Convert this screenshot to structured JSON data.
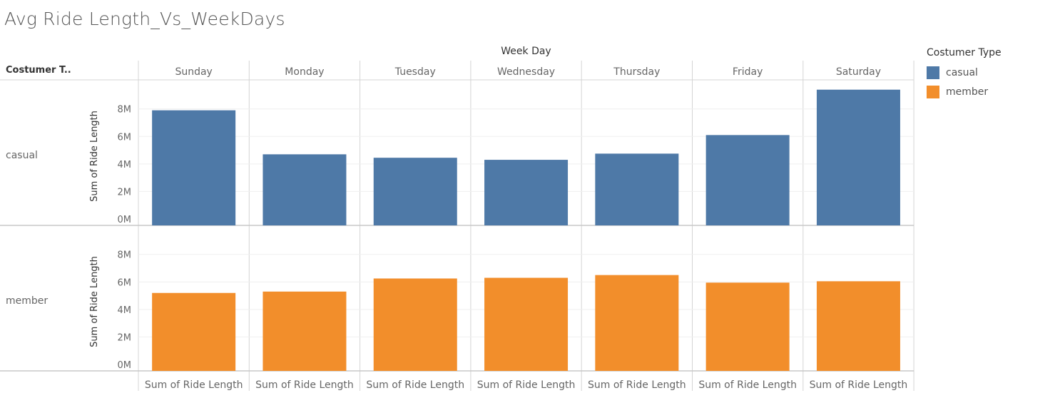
{
  "title": "Avg Ride Length_Vs_WeekDays",
  "column_header": "Week Day",
  "row_header": "Costumer T..",
  "legend": {
    "title": "Costumer Type",
    "items": [
      {
        "label": "casual",
        "color": "#4e79a7"
      },
      {
        "label": "member",
        "color": "#f28e2b"
      }
    ]
  },
  "chart_data": {
    "type": "bar",
    "categories": [
      "Sunday",
      "Monday",
      "Tuesday",
      "Wednesday",
      "Thursday",
      "Friday",
      "Saturday"
    ],
    "rows": [
      "casual",
      "member"
    ],
    "series": [
      {
        "name": "casual",
        "color": "#4e79a7",
        "values": [
          7.9,
          4.7,
          4.45,
          4.3,
          4.75,
          6.1,
          9.4
        ]
      },
      {
        "name": "member",
        "color": "#f28e2b",
        "values": [
          5.2,
          5.3,
          6.25,
          6.3,
          6.5,
          5.95,
          6.05
        ]
      }
    ],
    "ylabel": "Sum of Ride Length",
    "xlabel": "Sum of Ride Length",
    "yticks": [
      "0M",
      "2M",
      "4M",
      "6M",
      "8M"
    ],
    "ytick_values": [
      0,
      2,
      4,
      6,
      8
    ],
    "ylim": [
      0,
      9.8
    ],
    "grid": true
  }
}
